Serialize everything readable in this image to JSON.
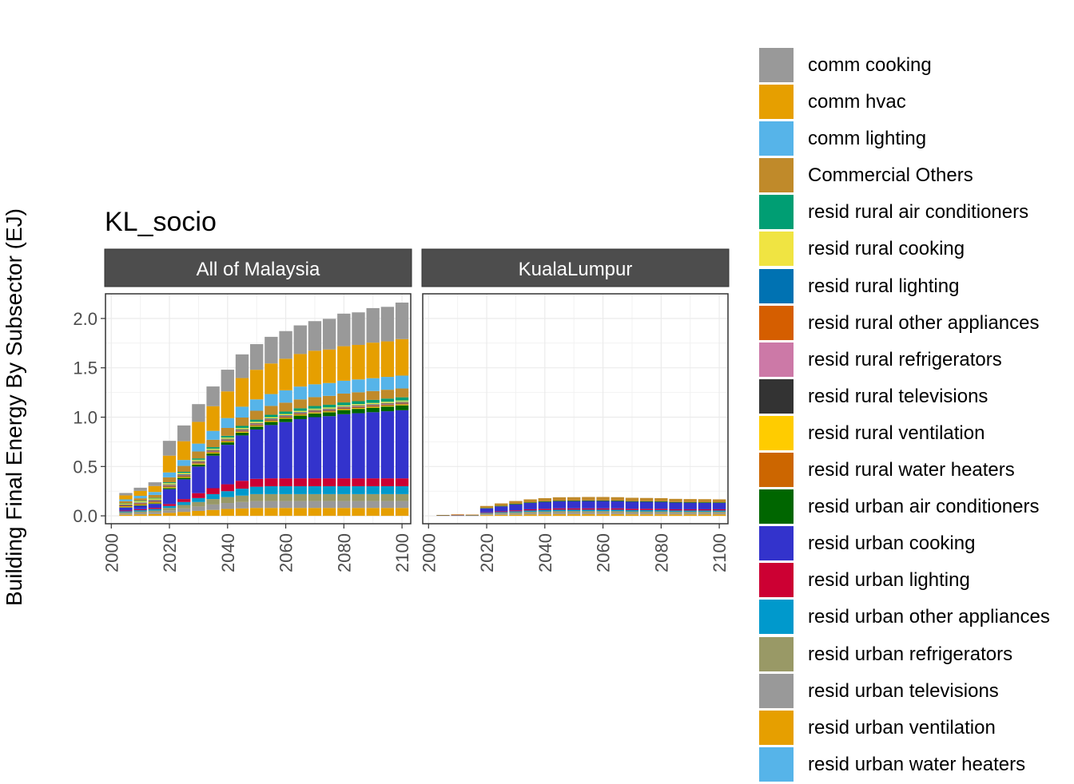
{
  "chart_data": {
    "type": "bar",
    "stacked": true,
    "title": "KL_socio",
    "ylabel": "Building Final Energy By Subsector (EJ)",
    "xlabel": "",
    "ylim": [
      -0.08,
      2.25
    ],
    "xlim": [
      1998,
      2103
    ],
    "yticks": [
      0.0,
      0.5,
      1.0,
      1.5,
      2.0
    ],
    "ytick_labels": [
      "0.0",
      "0.5",
      "1.0",
      "1.5",
      "2.0"
    ],
    "xticks": [
      2000,
      2020,
      2040,
      2060,
      2080,
      2100
    ],
    "xtick_labels": [
      "2000",
      "2020",
      "2040",
      "2060",
      "2080",
      "2100"
    ],
    "years": [
      2005,
      2010,
      2015,
      2020,
      2025,
      2030,
      2035,
      2040,
      2045,
      2050,
      2055,
      2060,
      2065,
      2070,
      2075,
      2080,
      2085,
      2090,
      2095,
      2100
    ],
    "legend": [
      {
        "name": "comm cooking",
        "color": "#999999"
      },
      {
        "name": "comm hvac",
        "color": "#E69F00"
      },
      {
        "name": "comm lighting",
        "color": "#56B4E9"
      },
      {
        "name": "Commercial Others",
        "color": "#C08A2A"
      },
      {
        "name": "resid rural air conditioners",
        "color": "#009E73"
      },
      {
        "name": "resid rural cooking",
        "color": "#F0E442"
      },
      {
        "name": "resid rural lighting",
        "color": "#0072B2"
      },
      {
        "name": "resid rural other appliances",
        "color": "#D55E00"
      },
      {
        "name": "resid rural refrigerators",
        "color": "#CC79A7"
      },
      {
        "name": "resid rural televisions",
        "color": "#333333"
      },
      {
        "name": "resid rural ventilation",
        "color": "#FFCC00"
      },
      {
        "name": "resid rural water heaters",
        "color": "#CC6600"
      },
      {
        "name": "resid urban air conditioners",
        "color": "#006600"
      },
      {
        "name": "resid urban cooking",
        "color": "#3333CC"
      },
      {
        "name": "resid urban lighting",
        "color": "#CC0033"
      },
      {
        "name": "resid urban other appliances",
        "color": "#0099CC"
      },
      {
        "name": "resid urban refrigerators",
        "color": "#999966"
      },
      {
        "name": "resid urban televisions",
        "color": "#999999"
      },
      {
        "name": "resid urban ventilation",
        "color": "#E69F00"
      },
      {
        "name": "resid urban water heaters",
        "color": "#56B4E9"
      }
    ],
    "panels": [
      {
        "label": "All of Malaysia",
        "stack_order": [
          "resid urban ventilation",
          "resid urban televisions",
          "resid urban refrigerators",
          "resid urban other appliances",
          "resid urban lighting",
          "resid urban cooking",
          "resid urban air conditioners",
          "resid rural ventilation",
          "resid rural water heaters",
          "resid rural televisions",
          "resid rural refrigerators",
          "resid rural other appliances",
          "resid rural lighting",
          "resid rural cooking",
          "resid rural air conditioners",
          "Commercial Others",
          "comm lighting",
          "comm hvac",
          "comm cooking"
        ],
        "series": [
          {
            "name": "resid urban ventilation",
            "values": [
              0.012,
              0.015,
              0.018,
              0.03,
              0.04,
              0.05,
              0.06,
              0.07,
              0.075,
              0.08,
              0.08,
              0.08,
              0.08,
              0.08,
              0.08,
              0.08,
              0.08,
              0.08,
              0.08,
              0.08
            ]
          },
          {
            "name": "resid urban televisions",
            "values": [
              0.012,
              0.015,
              0.018,
              0.025,
              0.035,
              0.045,
              0.055,
              0.06,
              0.065,
              0.07,
              0.07,
              0.07,
              0.07,
              0.07,
              0.07,
              0.07,
              0.07,
              0.07,
              0.07,
              0.07
            ]
          },
          {
            "name": "resid urban refrigerators",
            "values": [
              0.012,
              0.015,
              0.018,
              0.025,
              0.035,
              0.045,
              0.055,
              0.06,
              0.065,
              0.07,
              0.07,
              0.07,
              0.07,
              0.07,
              0.07,
              0.07,
              0.07,
              0.07,
              0.07,
              0.07
            ]
          },
          {
            "name": "resid urban other appliances",
            "values": [
              0.01,
              0.012,
              0.015,
              0.02,
              0.03,
              0.04,
              0.05,
              0.06,
              0.07,
              0.075,
              0.08,
              0.08,
              0.08,
              0.08,
              0.08,
              0.08,
              0.08,
              0.08,
              0.08,
              0.08
            ]
          },
          {
            "name": "resid urban lighting",
            "values": [
              0.008,
              0.01,
              0.012,
              0.02,
              0.03,
              0.05,
              0.06,
              0.07,
              0.08,
              0.08,
              0.08,
              0.08,
              0.08,
              0.08,
              0.08,
              0.08,
              0.08,
              0.08,
              0.08,
              0.08
            ]
          },
          {
            "name": "resid urban cooking",
            "values": [
              0.03,
              0.035,
              0.04,
              0.15,
              0.2,
              0.27,
              0.33,
              0.4,
              0.46,
              0.5,
              0.54,
              0.57,
              0.6,
              0.62,
              0.63,
              0.65,
              0.66,
              0.67,
              0.68,
              0.69
            ]
          },
          {
            "name": "resid urban air conditioners",
            "values": [
              0.004,
              0.005,
              0.006,
              0.012,
              0.016,
              0.02,
              0.022,
              0.025,
              0.028,
              0.03,
              0.032,
              0.034,
              0.036,
              0.038,
              0.04,
              0.042,
              0.044,
              0.046,
              0.048,
              0.05
            ]
          },
          {
            "name": "resid rural ventilation",
            "values": [
              0.006,
              0.007,
              0.008,
              0.008,
              0.008,
              0.008,
              0.008,
              0.008,
              0.008,
              0.008,
              0.008,
              0.008,
              0.008,
              0.008,
              0.008,
              0.008,
              0.008,
              0.008,
              0.008,
              0.008
            ]
          },
          {
            "name": "resid rural water heaters",
            "values": [
              0.004,
              0.004,
              0.005,
              0.005,
              0.005,
              0.005,
              0.005,
              0.005,
              0.005,
              0.005,
              0.005,
              0.005,
              0.005,
              0.005,
              0.005,
              0.005,
              0.005,
              0.005,
              0.005,
              0.005
            ]
          },
          {
            "name": "resid rural televisions",
            "values": [
              0.004,
              0.005,
              0.006,
              0.006,
              0.006,
              0.006,
              0.006,
              0.006,
              0.006,
              0.006,
              0.006,
              0.006,
              0.006,
              0.006,
              0.006,
              0.006,
              0.006,
              0.006,
              0.006,
              0.006
            ]
          },
          {
            "name": "resid rural refrigerators",
            "values": [
              0.004,
              0.004,
              0.005,
              0.005,
              0.005,
              0.005,
              0.005,
              0.005,
              0.005,
              0.005,
              0.005,
              0.005,
              0.005,
              0.005,
              0.005,
              0.005,
              0.005,
              0.005,
              0.005,
              0.005
            ]
          },
          {
            "name": "resid rural other appliances",
            "values": [
              0.004,
              0.005,
              0.006,
              0.006,
              0.006,
              0.006,
              0.006,
              0.006,
              0.006,
              0.006,
              0.006,
              0.006,
              0.006,
              0.006,
              0.006,
              0.006,
              0.006,
              0.006,
              0.006,
              0.006
            ]
          },
          {
            "name": "resid rural lighting",
            "values": [
              0.004,
              0.005,
              0.006,
              0.006,
              0.006,
              0.006,
              0.006,
              0.006,
              0.006,
              0.006,
              0.006,
              0.006,
              0.006,
              0.006,
              0.006,
              0.006,
              0.006,
              0.006,
              0.006,
              0.006
            ]
          },
          {
            "name": "resid rural cooking",
            "values": [
              0.008,
              0.01,
              0.012,
              0.012,
              0.012,
              0.012,
              0.012,
              0.012,
              0.012,
              0.012,
              0.012,
              0.012,
              0.012,
              0.012,
              0.012,
              0.012,
              0.012,
              0.012,
              0.012,
              0.012
            ]
          },
          {
            "name": "resid rural air conditioners",
            "values": [
              0.005,
              0.006,
              0.007,
              0.01,
              0.012,
              0.014,
              0.016,
              0.018,
              0.02,
              0.022,
              0.024,
              0.025,
              0.026,
              0.027,
              0.028,
              0.029,
              0.03,
              0.031,
              0.032,
              0.033
            ]
          },
          {
            "name": "Commercial Others",
            "values": [
              0.02,
              0.025,
              0.03,
              0.05,
              0.06,
              0.07,
              0.075,
              0.08,
              0.085,
              0.09,
              0.09,
              0.09,
              0.09,
              0.09,
              0.09,
              0.09,
              0.09,
              0.09,
              0.09,
              0.09
            ]
          },
          {
            "name": "comm lighting",
            "values": [
              0.02,
              0.025,
              0.03,
              0.05,
              0.06,
              0.08,
              0.09,
              0.1,
              0.11,
              0.115,
              0.12,
              0.125,
              0.13,
              0.13,
              0.13,
              0.13,
              0.13,
              0.13,
              0.13,
              0.13
            ]
          },
          {
            "name": "comm hvac",
            "values": [
              0.04,
              0.05,
              0.06,
              0.17,
              0.19,
              0.22,
              0.25,
              0.27,
              0.29,
              0.3,
              0.31,
              0.32,
              0.33,
              0.34,
              0.34,
              0.35,
              0.35,
              0.36,
              0.36,
              0.37
            ]
          },
          {
            "name": "comm cooking",
            "values": [
              0.025,
              0.032,
              0.038,
              0.15,
              0.16,
              0.18,
              0.2,
              0.22,
              0.24,
              0.26,
              0.27,
              0.28,
              0.29,
              0.3,
              0.31,
              0.33,
              0.33,
              0.35,
              0.35,
              0.37
            ]
          }
        ]
      },
      {
        "label": "KualaLumpur",
        "stack_order": [
          "resid urban ventilation",
          "resid urban televisions",
          "resid urban refrigerators",
          "resid urban other appliances",
          "resid urban lighting",
          "resid urban cooking",
          "resid urban air conditioners",
          "resid rural water heaters",
          "Commercial Others"
        ],
        "series": [
          {
            "name": "resid urban ventilation",
            "values": [
              0.0,
              0.0,
              0.0,
              0.008,
              0.01,
              0.012,
              0.014,
              0.015,
              0.016,
              0.016,
              0.016,
              0.016,
              0.016,
              0.015,
              0.015,
              0.015,
              0.014,
              0.014,
              0.014,
              0.014
            ]
          },
          {
            "name": "resid urban televisions",
            "values": [
              0.0,
              0.0,
              0.0,
              0.008,
              0.01,
              0.012,
              0.014,
              0.015,
              0.016,
              0.016,
              0.016,
              0.016,
              0.016,
              0.015,
              0.015,
              0.015,
              0.014,
              0.014,
              0.014,
              0.014
            ]
          },
          {
            "name": "resid urban refrigerators",
            "values": [
              0.0,
              0.0,
              0.0,
              0.008,
              0.01,
              0.012,
              0.014,
              0.015,
              0.016,
              0.016,
              0.016,
              0.016,
              0.016,
              0.015,
              0.015,
              0.015,
              0.014,
              0.014,
              0.014,
              0.014
            ]
          },
          {
            "name": "resid urban other appliances",
            "values": [
              0.0,
              0.0,
              0.0,
              0.006,
              0.008,
              0.01,
              0.012,
              0.013,
              0.014,
              0.014,
              0.014,
              0.014,
              0.014,
              0.013,
              0.013,
              0.013,
              0.012,
              0.012,
              0.012,
              0.012
            ]
          },
          {
            "name": "resid urban lighting",
            "values": [
              0.0,
              0.0,
              0.0,
              0.006,
              0.008,
              0.01,
              0.012,
              0.013,
              0.014,
              0.014,
              0.014,
              0.014,
              0.014,
              0.013,
              0.013,
              0.013,
              0.012,
              0.012,
              0.012,
              0.012
            ]
          },
          {
            "name": "resid urban cooking",
            "values": [
              0.003,
              0.004,
              0.003,
              0.04,
              0.05,
              0.06,
              0.065,
              0.07,
              0.072,
              0.073,
              0.074,
              0.074,
              0.073,
              0.072,
              0.071,
              0.07,
              0.068,
              0.067,
              0.066,
              0.065
            ]
          },
          {
            "name": "resid urban air conditioners",
            "values": [
              0.002,
              0.002,
              0.003,
              0.004,
              0.005,
              0.006,
              0.006,
              0.006,
              0.006,
              0.006,
              0.006,
              0.006,
              0.006,
              0.006,
              0.006,
              0.006,
              0.006,
              0.006,
              0.006,
              0.006
            ]
          },
          {
            "name": "resid rural water heaters",
            "values": [
              0.004,
              0.008,
              0.006,
              0.0,
              0.0,
              0.0,
              0.0,
              0.0,
              0.0,
              0.0,
              0.0,
              0.0,
              0.0,
              0.0,
              0.0,
              0.0,
              0.0,
              0.0,
              0.0,
              0.0
            ]
          },
          {
            "name": "Commercial Others",
            "values": [
              0.0,
              0.0,
              0.0,
              0.02,
              0.025,
              0.028,
              0.03,
              0.032,
              0.034,
              0.034,
              0.035,
              0.035,
              0.034,
              0.034,
              0.033,
              0.032,
              0.032,
              0.031,
              0.031,
              0.03
            ]
          }
        ]
      }
    ]
  }
}
